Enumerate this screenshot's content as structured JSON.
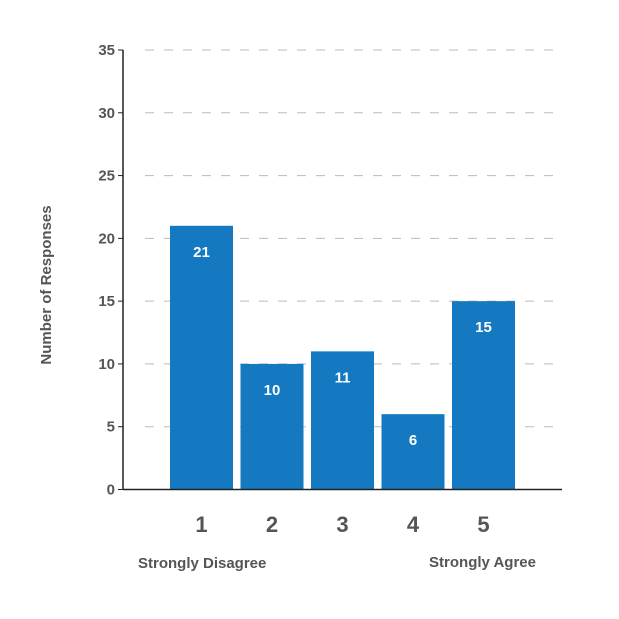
{
  "chart_data": {
    "type": "bar",
    "categories": [
      "1",
      "2",
      "3",
      "4",
      "5"
    ],
    "values": [
      21,
      10,
      11,
      6,
      15
    ],
    "title": "",
    "xlabel": "",
    "ylabel": "Number of Responses",
    "ylim": [
      0,
      35
    ],
    "yticks": [
      0,
      5,
      10,
      15,
      20,
      25,
      30,
      35
    ],
    "ytick_labels": [
      "0",
      "5",
      "10",
      "15",
      "20",
      "25",
      "30",
      "35"
    ],
    "grid": true,
    "data_labels": [
      "21",
      "10",
      "11",
      "6",
      "15"
    ],
    "scale_labels": {
      "low": "Strongly Disagree",
      "high": "Strongly Agree"
    },
    "colors": {
      "bar": "#1479c0",
      "grid": "#bbbbbb",
      "axis": "#222222",
      "text": "#555555",
      "data_label": "#ffffff"
    }
  }
}
